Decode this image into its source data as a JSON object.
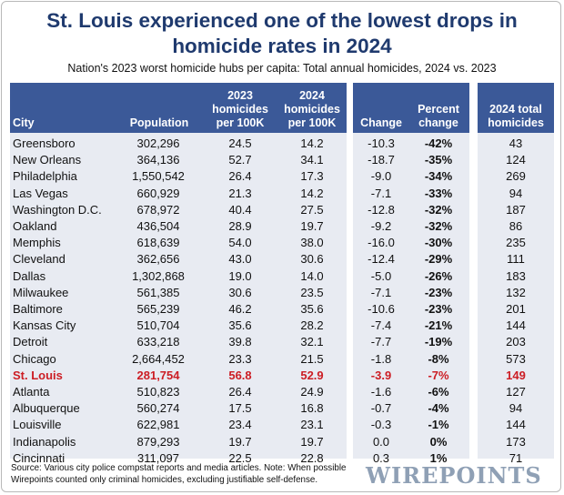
{
  "title": "St. Louis experienced one of the lowest drops in homicide rates in 2024",
  "subtitle": "Nation's 2023 worst homicide hubs per capita: Total annual homicides, 2024 vs. 2023",
  "footer": "Source: Various city police compstat reports and media articles. Note: When possible Wirepoints counted only criminal homicides, excluding justifiable self-defense.",
  "logo": "WIREPOINTS",
  "colors": {
    "title": "#1f3a6e",
    "header_bg": "#3b5998",
    "band_bg": "#e8ebf2",
    "highlight": "#cc1d24"
  },
  "chart_data": {
    "type": "table",
    "title": "St. Louis experienced one of the lowest drops in homicide rates in 2024",
    "subtitle": "Nation's 2023 worst homicide hubs per capita: Total annual homicides, 2024 vs. 2023",
    "columns": [
      "City",
      "Population",
      "2023 homicides per 100K",
      "2024 homicides per 100K",
      "Change",
      "Percent change",
      "2024 total homicides"
    ],
    "highlight_row": "St. Louis",
    "rows": [
      [
        "Greensboro",
        "302,296",
        "24.5",
        "14.2",
        "-10.3",
        "-42%",
        "43"
      ],
      [
        "New Orleans",
        "364,136",
        "52.7",
        "34.1",
        "-18.7",
        "-35%",
        "124"
      ],
      [
        "Philadelphia",
        "1,550,542",
        "26.4",
        "17.3",
        "-9.0",
        "-34%",
        "269"
      ],
      [
        "Las Vegas",
        "660,929",
        "21.3",
        "14.2",
        "-7.1",
        "-33%",
        "94"
      ],
      [
        "Washington D.C.",
        "678,972",
        "40.4",
        "27.5",
        "-12.8",
        "-32%",
        "187"
      ],
      [
        "Oakland",
        "436,504",
        "28.9",
        "19.7",
        "-9.2",
        "-32%",
        "86"
      ],
      [
        "Memphis",
        "618,639",
        "54.0",
        "38.0",
        "-16.0",
        "-30%",
        "235"
      ],
      [
        "Cleveland",
        "362,656",
        "43.0",
        "30.6",
        "-12.4",
        "-29%",
        "111"
      ],
      [
        "Dallas",
        "1,302,868",
        "19.0",
        "14.0",
        "-5.0",
        "-26%",
        "183"
      ],
      [
        "Milwaukee",
        "561,385",
        "30.6",
        "23.5",
        "-7.1",
        "-23%",
        "132"
      ],
      [
        "Baltimore",
        "565,239",
        "46.2",
        "35.6",
        "-10.6",
        "-23%",
        "201"
      ],
      [
        "Kansas City",
        "510,704",
        "35.6",
        "28.2",
        "-7.4",
        "-21%",
        "144"
      ],
      [
        "Detroit",
        "633,218",
        "39.8",
        "32.1",
        "-7.7",
        "-19%",
        "203"
      ],
      [
        "Chicago",
        "2,664,452",
        "23.3",
        "21.5",
        "-1.8",
        "-8%",
        "573"
      ],
      [
        "St. Louis",
        "281,754",
        "56.8",
        "52.9",
        "-3.9",
        "-7%",
        "149"
      ],
      [
        "Atlanta",
        "510,823",
        "26.4",
        "24.9",
        "-1.6",
        "-6%",
        "127"
      ],
      [
        "Albuquerque",
        "560,274",
        "17.5",
        "16.8",
        "-0.7",
        "-4%",
        "94"
      ],
      [
        "Louisville",
        "622,981",
        "23.4",
        "23.1",
        "-0.3",
        "-1%",
        "144"
      ],
      [
        "Indianapolis",
        "879,293",
        "19.7",
        "19.7",
        "0.0",
        "0%",
        "173"
      ],
      [
        "Cincinnati",
        "311,097",
        "22.5",
        "22.8",
        "0.3",
        "1%",
        "71"
      ]
    ]
  }
}
